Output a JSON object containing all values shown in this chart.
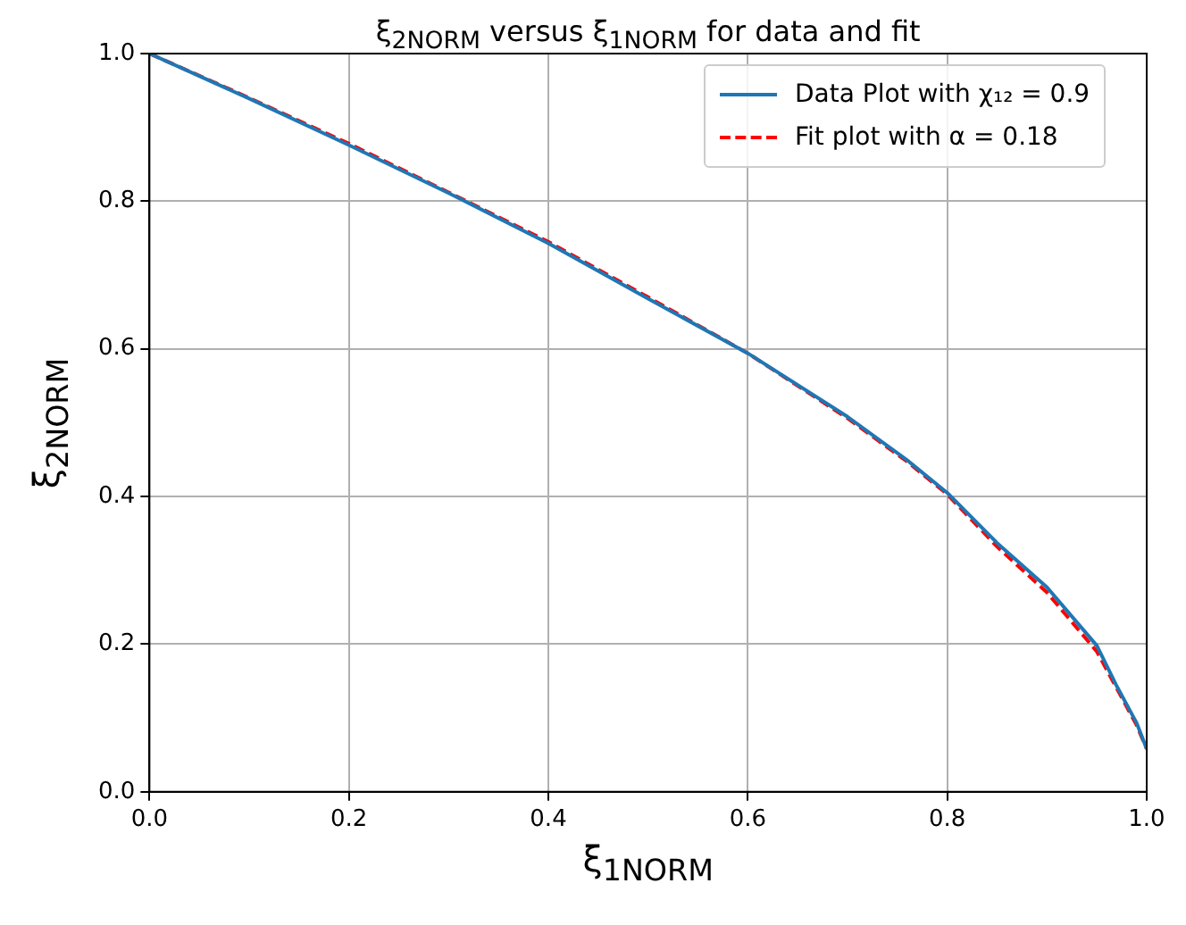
{
  "chart_data": {
    "type": "line",
    "title": "ξ$_{2NORM}$ versus ξ$_{1NORM}$ for data and fit",
    "xlabel": "ξ$_{1NORM}$",
    "ylabel": "ξ$_{2NORM}$",
    "x": [
      0,
      0.1,
      0.2,
      0.3,
      0.4,
      0.5,
      0.6,
      0.7,
      0.76,
      0.8,
      0.85,
      0.9,
      0.95,
      0.97,
      0.99,
      1.0
    ],
    "series": [
      {
        "name": "Data Plot with χ₁₂ = 0.9",
        "color": "#1f77b4",
        "line_style": "solid",
        "values": [
          1,
          0.939,
          0.876,
          0.811,
          0.743,
          0.668,
          0.594,
          0.508,
          0.449,
          0.405,
          0.337,
          0.277,
          0.198,
          0.143,
          0.093,
          0.058
        ]
      },
      {
        "name": "Fit plot with α = 0.18",
        "color": "#ff0000",
        "line_style": "dashed",
        "values": [
          1,
          0.94,
          0.878,
          0.812,
          0.745,
          0.67,
          0.594,
          0.506,
          0.447,
          0.403,
          0.332,
          0.27,
          0.19,
          0.14,
          0.09,
          0.058
        ]
      }
    ],
    "xlim": [
      0,
      1
    ],
    "ylim": [
      0,
      1
    ],
    "xticks": [
      {
        "value": 0,
        "label": "0.0"
      },
      {
        "value": 0.2,
        "label": "0.2"
      },
      {
        "value": 0.4,
        "label": "0.4"
      },
      {
        "value": 0.6,
        "label": "0.6"
      },
      {
        "value": 0.8,
        "label": "0.8"
      },
      {
        "value": 1,
        "label": "1.0"
      }
    ],
    "yticks": [
      {
        "value": 0,
        "label": "0.0"
      },
      {
        "value": 0.2,
        "label": "0.2"
      },
      {
        "value": 0.4,
        "label": "0.4"
      },
      {
        "value": 0.6,
        "label": "0.6"
      },
      {
        "value": 0.8,
        "label": "0.8"
      },
      {
        "value": 1,
        "label": "1.0"
      }
    ],
    "grid": true,
    "legend": "top right",
    "marker": "none"
  }
}
